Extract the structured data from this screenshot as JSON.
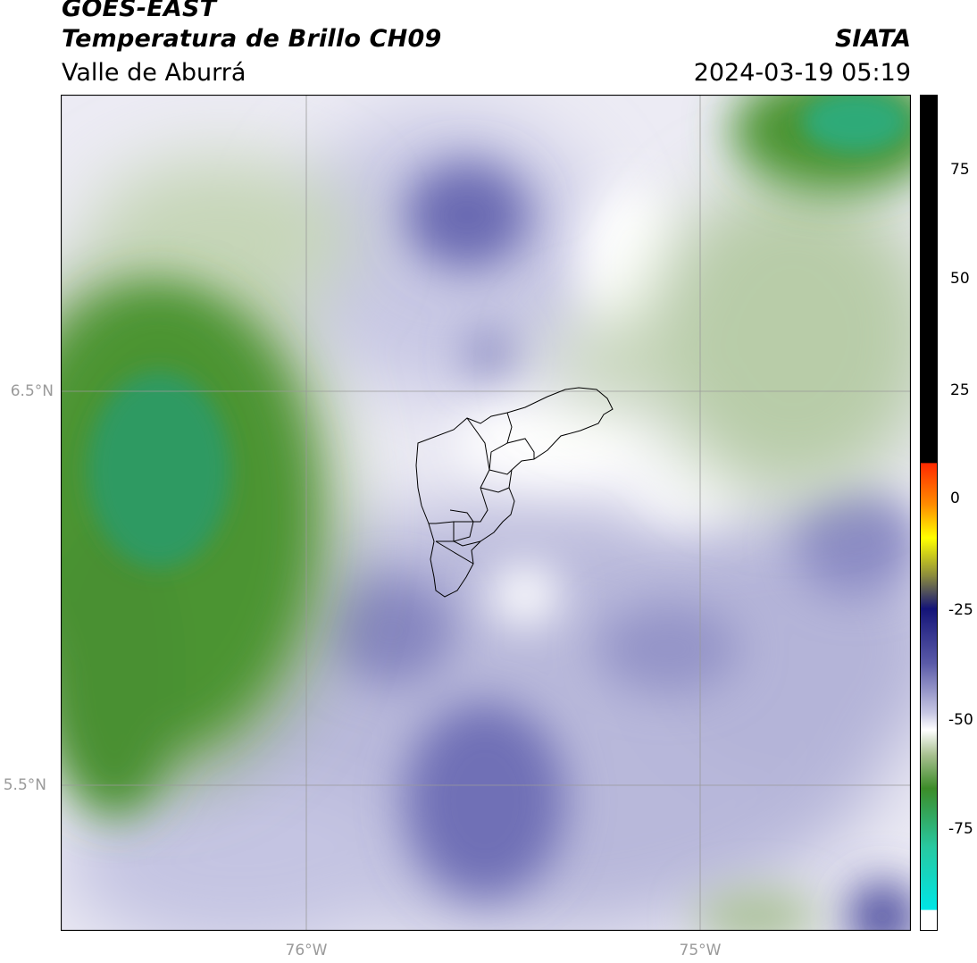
{
  "header": {
    "satellite": "GOES-EAST",
    "product": "Temperatura de Brillo CH09",
    "region": "Valle de Aburrá",
    "agency": "SIATA",
    "datetime": "2024-03-19 05:19"
  },
  "map": {
    "lat_labels": [
      "6.5°N",
      "5.5°N"
    ],
    "lon_labels": [
      "76°W",
      "75°W"
    ],
    "gridline_color": "#9a9a9a",
    "boundary_color": "#000000"
  },
  "colorbar": {
    "ticks": [
      "75",
      "50",
      "25",
      "0",
      "-25",
      "-50",
      "-75"
    ],
    "colors": {
      "black": "#000000",
      "red": "#ff2a00",
      "orange": "#ff8c00",
      "yellow": "#ffff00",
      "olive": "#8c8c3c",
      "navy": "#141478",
      "slate_blue": "#5a5aa8",
      "lavender": "#c8c8e4",
      "white": "#ffffff",
      "light_green": "#a8c090",
      "green": "#3c8c28",
      "teal": "#28c8a0",
      "cyan": "#00e6e6"
    }
  }
}
